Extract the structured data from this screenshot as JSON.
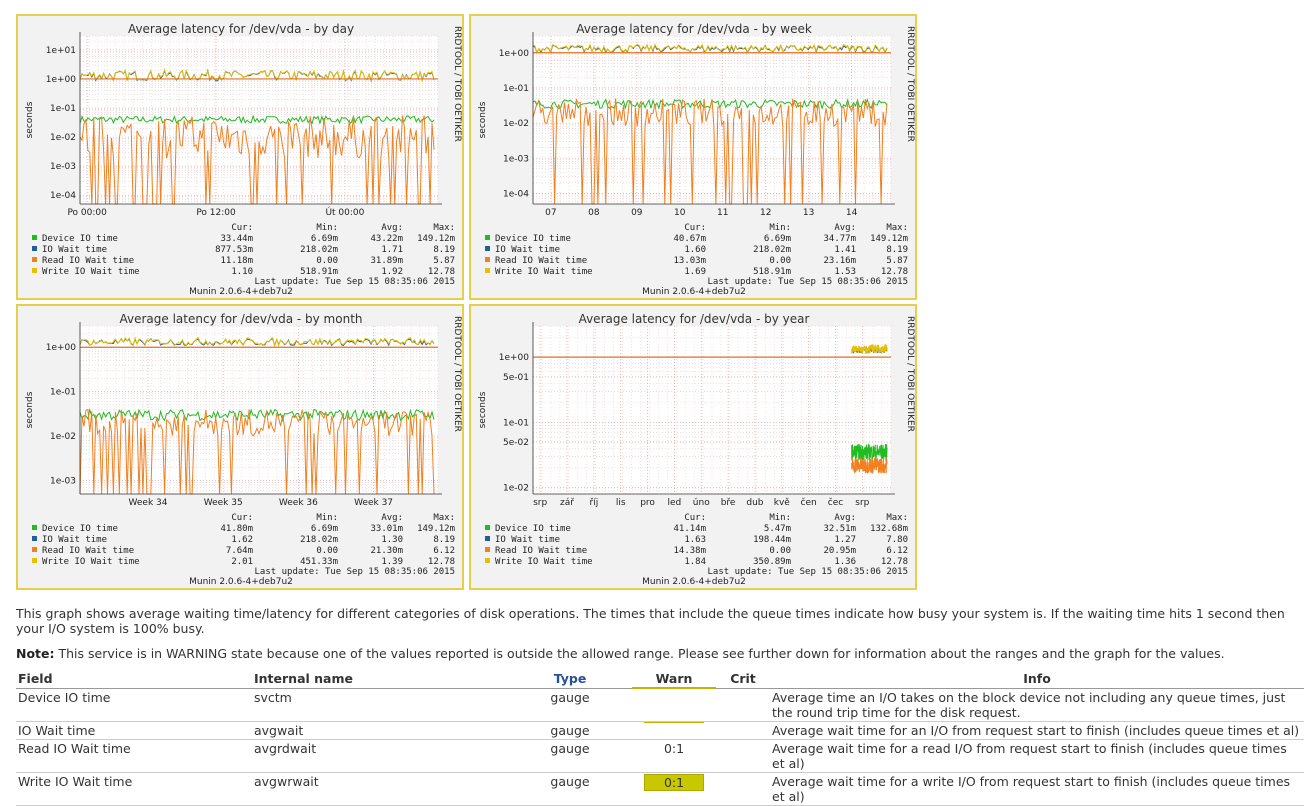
{
  "colors": {
    "device": "#22bb22",
    "iowait": "#1f5fa0",
    "read": "#f08020",
    "write": "#e8c000",
    "warn_line": "#e07020",
    "border": "#e6cf4a",
    "warn_bg": "#c8c800"
  },
  "vlabel": "seconds",
  "watermark": "RRDTOOL / TOBI OETIKER",
  "version": "Munin 2.0.6-4+deb7u2",
  "last_update_label": "Last update:",
  "last_update": "Tue Sep 15 08:35:06 2015",
  "col_headers": {
    "cur": "Cur:",
    "min": "Min:",
    "avg": "Avg:",
    "max": "Max:"
  },
  "graphs": [
    {
      "title": "Average latency for /dev/vda - by day",
      "scale": "log",
      "ylim": [
        5e-05,
        30
      ],
      "yticks": [
        "1e+01",
        "1e+00",
        "1e-01",
        "1e-02",
        "1e-03",
        "1e-04"
      ],
      "ytick_values": [
        10,
        1,
        0.1,
        0.01,
        0.001,
        0.0001
      ],
      "xticks": [
        "Po 00:00",
        "Po 12:00",
        "Út 00:00"
      ],
      "xtick_pos": [
        0.02,
        0.38,
        0.74
      ],
      "profile": {
        "top": 1.3,
        "top_var": 0.35,
        "dev": 0.04,
        "read": 0.01,
        "read_var": 1.5,
        "start": 0.0
      },
      "legend": [
        {
          "name": "Device IO time",
          "cur": "33.44m",
          "min": "6.69m",
          "avg": "43.22m",
          "max": "149.12m"
        },
        {
          "name": "IO Wait time",
          "cur": "877.53m",
          "min": "218.02m",
          "avg": "1.71",
          "max": "8.19"
        },
        {
          "name": "Read IO Wait time",
          "cur": "11.18m",
          "min": "0.00",
          "avg": "31.89m",
          "max": "5.87"
        },
        {
          "name": "Write IO Wait time",
          "cur": "1.10",
          "min": "518.91m",
          "avg": "1.92",
          "max": "12.78"
        }
      ]
    },
    {
      "title": "Average latency for /dev/vda - by week",
      "scale": "log",
      "ylim": [
        5e-05,
        3
      ],
      "yticks": [
        "1e+00",
        "1e-01",
        "1e-02",
        "1e-03",
        "1e-04"
      ],
      "ytick_values": [
        1,
        0.1,
        0.01,
        0.001,
        0.0001
      ],
      "xticks": [
        "07",
        "08",
        "09",
        "10",
        "11",
        "12",
        "13",
        "14"
      ],
      "xtick_pos": [
        0.05,
        0.17,
        0.29,
        0.41,
        0.53,
        0.65,
        0.77,
        0.89
      ],
      "profile": {
        "top": 1.3,
        "top_var": 0.2,
        "dev": 0.035,
        "read": 0.02,
        "read_var": 0.8,
        "start": 0.0
      },
      "legend": [
        {
          "name": "Device IO time",
          "cur": "40.67m",
          "min": "6.69m",
          "avg": "34.77m",
          "max": "149.12m"
        },
        {
          "name": "IO Wait time",
          "cur": "1.60",
          "min": "218.02m",
          "avg": "1.41",
          "max": "8.19"
        },
        {
          "name": "Read IO Wait time",
          "cur": "13.03m",
          "min": "0.00",
          "avg": "23.16m",
          "max": "5.87"
        },
        {
          "name": "Write IO Wait time",
          "cur": "1.69",
          "min": "518.91m",
          "avg": "1.53",
          "max": "12.78"
        }
      ]
    },
    {
      "title": "Average latency for /dev/vda - by month",
      "scale": "log",
      "ylim": [
        0.0005,
        3
      ],
      "yticks": [
        "1e+00",
        "1e-01",
        "1e-02",
        "1e-03"
      ],
      "ytick_values": [
        1,
        0.1,
        0.01,
        0.001
      ],
      "xticks": [
        "Week 34",
        "Week 35",
        "Week 36",
        "Week 37"
      ],
      "xtick_pos": [
        0.19,
        0.4,
        0.61,
        0.82
      ],
      "profile": {
        "top": 1.3,
        "top_var": 0.15,
        "dev": 0.03,
        "read": 0.02,
        "read_var": 0.6,
        "start": 0.0
      },
      "legend": [
        {
          "name": "Device IO time",
          "cur": "41.80m",
          "min": "6.69m",
          "avg": "33.01m",
          "max": "149.12m"
        },
        {
          "name": "IO Wait time",
          "cur": "1.62",
          "min": "218.02m",
          "avg": "1.30",
          "max": "8.19"
        },
        {
          "name": "Read IO Wait time",
          "cur": "7.64m",
          "min": "0.00",
          "avg": "21.30m",
          "max": "6.12"
        },
        {
          "name": "Write IO Wait time",
          "cur": "2.01",
          "min": "451.33m",
          "avg": "1.39",
          "max": "12.78"
        }
      ]
    },
    {
      "title": "Average latency for /dev/vda - by year",
      "scale": "log",
      "ylim": [
        0.008,
        3
      ],
      "yticks": [
        "1e+00",
        "5e-01",
        "1e-01",
        "5e-02",
        "1e-02"
      ],
      "ytick_values": [
        1,
        0.5,
        0.1,
        0.05,
        0.01
      ],
      "xticks": [
        "srp",
        "zář",
        "říj",
        "lis",
        "pro",
        "led",
        "úno",
        "bře",
        "dub",
        "kvě",
        "čen",
        "čec",
        "srp"
      ],
      "xtick_pos": [
        0.02,
        0.095,
        0.17,
        0.245,
        0.32,
        0.395,
        0.47,
        0.545,
        0.62,
        0.695,
        0.77,
        0.845,
        0.92
      ],
      "profile": {
        "top": 1.3,
        "top_var": 0.1,
        "dev": 0.035,
        "read": 0.022,
        "read_var": 0.25,
        "start": 0.89
      },
      "legend": [
        {
          "name": "Device IO time",
          "cur": "41.14m",
          "min": "5.47m",
          "avg": "32.51m",
          "max": "132.68m"
        },
        {
          "name": "IO Wait time",
          "cur": "1.63",
          "min": "198.44m",
          "avg": "1.27",
          "max": "7.80"
        },
        {
          "name": "Read IO Wait time",
          "cur": "14.38m",
          "min": "0.00",
          "avg": "20.95m",
          "max": "6.12"
        },
        {
          "name": "Write IO Wait time",
          "cur": "1.84",
          "min": "350.89m",
          "avg": "1.36",
          "max": "12.78"
        }
      ]
    }
  ],
  "description": "This graph shows average waiting time/latency for different categories of disk operations. The times that include the queue times indicate how busy your system is. If the waiting time hits 1 second then your I/O system is 100% busy.",
  "note_label": "Note:",
  "note_text": " This service is in WARNING state because one of the values reported is outside the allowed range. Please see further down for information about the ranges and the graph for the values.",
  "table": {
    "headers": {
      "field": "Field",
      "internal": "Internal name",
      "type": "Type",
      "warn": "Warn",
      "crit": "Crit",
      "info": "Info"
    },
    "rows": [
      {
        "field": "Device IO time",
        "internal": "svctm",
        "type": "gauge",
        "warn": "",
        "crit": "",
        "info": "Average time an I/O takes on the block device not including any queue times, just the round trip time for the disk request."
      },
      {
        "field": "IO Wait time",
        "internal": "avgwait",
        "type": "gauge",
        "warn": "",
        "crit": "",
        "info": "Average wait time for an I/O from request start to finish (includes queue times et al)"
      },
      {
        "field": "Read IO Wait time",
        "internal": "avgrdwait",
        "type": "gauge",
        "warn": "0:1",
        "crit": "",
        "info": "Average wait time for a read I/O from request start to finish (includes queue times et al)"
      },
      {
        "field": "Write IO Wait time",
        "internal": "avgwrwait",
        "type": "gauge",
        "warn": "0:1",
        "crit": "",
        "info": "Average wait time for a write I/O from request start to finish (includes queue times et al)",
        "warn_highlight": true
      }
    ]
  }
}
